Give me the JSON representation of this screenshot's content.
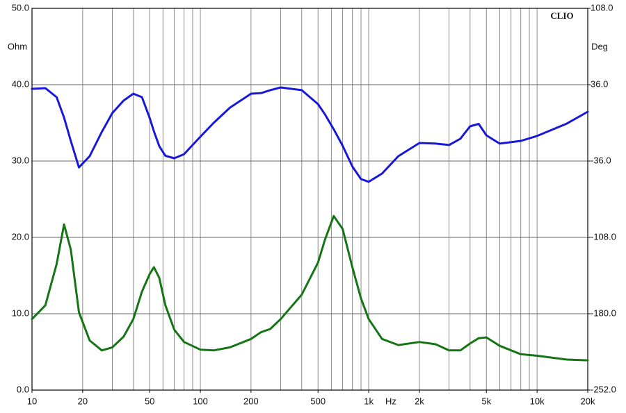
{
  "chart_data": {
    "type": "line",
    "brand": "CLIO",
    "xlog": true,
    "xlabel": "Hz",
    "ylabel": "Ohm",
    "y2label": "Deg",
    "xlim": [
      10,
      20000
    ],
    "xticks": [
      10,
      20,
      50,
      100,
      200,
      500,
      {
        "value": 1000,
        "label": "1k"
      },
      {
        "value": 2000,
        "label": "2k"
      },
      {
        "value": 5000,
        "label": "5k"
      },
      {
        "value": 10000,
        "label": "10k"
      },
      {
        "value": 20000,
        "label": "20k"
      }
    ],
    "xgrid": [
      20,
      30,
      40,
      50,
      60,
      70,
      80,
      90,
      100,
      200,
      300,
      400,
      500,
      600,
      700,
      800,
      900,
      1000,
      2000,
      3000,
      4000,
      5000,
      6000,
      7000,
      8000,
      9000,
      10000
    ],
    "ylim": [
      0,
      50
    ],
    "yticks": [
      {
        "value": 0,
        "label": "0.0"
      },
      {
        "value": 10,
        "label": "10.0"
      },
      {
        "value": 20,
        "label": "20.0"
      },
      {
        "value": 30,
        "label": "30.0"
      },
      {
        "value": 40,
        "label": "40.0"
      },
      {
        "value": 50,
        "label": "50.0"
      }
    ],
    "y2lim": [
      -252,
      108
    ],
    "y2ticks": [
      {
        "value": -252,
        "label": "-252.0"
      },
      {
        "value": -180,
        "label": "-180.0"
      },
      {
        "value": -108,
        "label": "-108.0"
      },
      {
        "value": -36,
        "label": "-36.0"
      },
      {
        "value": 36,
        "label": "36.0"
      },
      {
        "value": 108,
        "label": "108.0"
      }
    ],
    "grid": true,
    "x": [
      10,
      12,
      14,
      15.5,
      17,
      19,
      22,
      26,
      30,
      35,
      40,
      45,
      50,
      53,
      57,
      62,
      70,
      80,
      100,
      120,
      150,
      200,
      230,
      260,
      300,
      400,
      500,
      550,
      620,
      700,
      800,
      900,
      1000,
      1200,
      1500,
      2000,
      2500,
      3000,
      3500,
      4000,
      4500,
      5000,
      6000,
      8000,
      10000,
      15000,
      20000
    ],
    "series": [
      {
        "color": "#157515",
        "values": [
          9.3,
          11.1,
          16.5,
          21.7,
          18.4,
          10.2,
          6.5,
          5.2,
          5.6,
          7.0,
          9.3,
          12.9,
          15.2,
          16.1,
          14.7,
          11.1,
          7.9,
          6.3,
          5.3,
          5.2,
          5.6,
          6.7,
          7.6,
          8.0,
          9.3,
          12.5,
          16.7,
          19.7,
          22.8,
          21.1,
          16.1,
          12.0,
          9.3,
          6.7,
          5.9,
          6.3,
          6.0,
          5.2,
          5.2,
          6.1,
          6.8,
          6.9,
          5.8,
          4.7,
          4.5,
          4.0,
          3.9
        ]
      },
      {
        "color": "#1818d8",
        "axis": "y2",
        "values": [
          32.1,
          32.7,
          24.2,
          5,
          -17,
          -42,
          -31.4,
          -8.5,
          9.2,
          21.0,
          27.5,
          24.2,
          4.6,
          -8,
          -22,
          -31,
          -33.4,
          -29.5,
          -13.1,
          0,
          14.4,
          27.5,
          28.1,
          30.8,
          33.4,
          30.8,
          17.7,
          8,
          -6,
          -21.6,
          -41.2,
          -53,
          -55.6,
          -47.8,
          -31.4,
          -19,
          -19.6,
          -20.9,
          -15,
          -3.3,
          -1,
          -11.8,
          -19.6,
          -17,
          -12.4,
          -0.7,
          10.5
        ]
      }
    ]
  }
}
